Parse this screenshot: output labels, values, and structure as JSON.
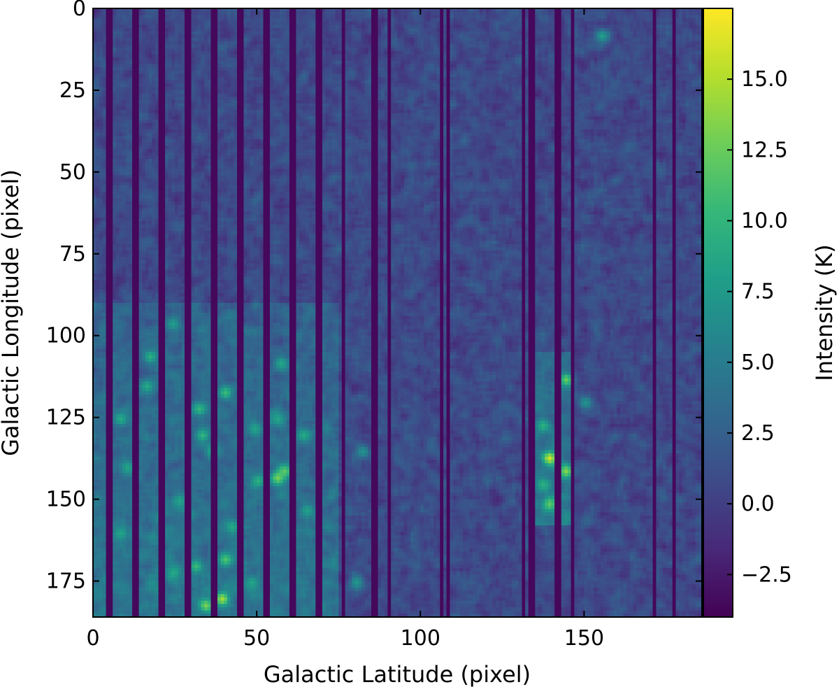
{
  "chart_data": {
    "type": "heatmap",
    "title": "",
    "xlabel": "Galactic Latitude (pixel)",
    "ylabel": "Galactic Longitude (pixel)",
    "colorbar_label": "Intensity (K)",
    "colormap": "viridis",
    "grid": false,
    "image_shape": [
      186,
      186
    ],
    "xlim": [
      0,
      186
    ],
    "ylim": [
      186,
      0
    ],
    "x_ticks": [
      0,
      50,
      100,
      150
    ],
    "x_tick_labels": [
      "0",
      "50",
      "100",
      "150"
    ],
    "y_ticks": [
      0,
      25,
      50,
      75,
      100,
      125,
      150,
      175
    ],
    "y_tick_labels": [
      "0",
      "25",
      "50",
      "75",
      "100",
      "125",
      "150",
      "175"
    ],
    "color_range": [
      -4.0,
      17.5
    ],
    "colorbar_ticks": [
      -2.5,
      0.0,
      2.5,
      5.0,
      7.5,
      10.0,
      12.5,
      15.0
    ],
    "colorbar_tick_labels": [
      "−2.5",
      "0.0",
      "2.5",
      "5.0",
      "7.5",
      "10.0",
      "12.5",
      "15.0"
    ],
    "background_level": 0.5,
    "masked_value": -3.6,
    "masked_columns": [
      {
        "start": 4,
        "end": 6
      },
      {
        "start": 12,
        "end": 14
      },
      {
        "start": 20,
        "end": 22
      },
      {
        "start": 28,
        "end": 30
      },
      {
        "start": 36,
        "end": 38
      },
      {
        "start": 44,
        "end": 46
      },
      {
        "start": 52,
        "end": 54
      },
      {
        "start": 60,
        "end": 62
      },
      {
        "start": 68,
        "end": 70
      },
      {
        "start": 76,
        "end": 76.5
      },
      {
        "start": 85,
        "end": 87
      },
      {
        "start": 90,
        "end": 90.5
      },
      {
        "start": 106,
        "end": 106.5
      },
      {
        "start": 108,
        "end": 108.5
      },
      {
        "start": 131,
        "end": 131.5
      },
      {
        "start": 133,
        "end": 135
      },
      {
        "start": 141,
        "end": 143
      },
      {
        "start": 146,
        "end": 146.5
      },
      {
        "start": 171,
        "end": 171.5
      },
      {
        "start": 177,
        "end": 177.5
      }
    ],
    "emission_regions": [
      {
        "x": [
          0,
          75
        ],
        "y": [
          90,
          186
        ],
        "mean_intensity": 5.5
      },
      {
        "x": [
          134,
          146
        ],
        "y": [
          105,
          158
        ],
        "mean_intensity": 6.0
      }
    ],
    "bright_spots": [
      {
        "x": 139,
        "y": 137,
        "value": 16.0
      },
      {
        "x": 144,
        "y": 141,
        "value": 13.5
      },
      {
        "x": 144,
        "y": 113,
        "value": 12.5
      },
      {
        "x": 139,
        "y": 151,
        "value": 12.0
      },
      {
        "x": 56,
        "y": 143,
        "value": 13.0
      },
      {
        "x": 58,
        "y": 141,
        "value": 12.0
      },
      {
        "x": 39,
        "y": 180,
        "value": 14.5
      },
      {
        "x": 34,
        "y": 182,
        "value": 13.0
      },
      {
        "x": 40,
        "y": 168,
        "value": 11.5
      },
      {
        "x": 31,
        "y": 170,
        "value": 10.5
      },
      {
        "x": 40,
        "y": 117,
        "value": 10.5
      },
      {
        "x": 32,
        "y": 122,
        "value": 10.0
      },
      {
        "x": 33,
        "y": 130,
        "value": 10.0
      },
      {
        "x": 50,
        "y": 144,
        "value": 9.5
      },
      {
        "x": 17,
        "y": 106,
        "value": 9.5
      },
      {
        "x": 16,
        "y": 115,
        "value": 9.0
      },
      {
        "x": 8,
        "y": 125,
        "value": 9.0
      },
      {
        "x": 8,
        "y": 160,
        "value": 8.5
      },
      {
        "x": 64,
        "y": 130,
        "value": 9.0
      },
      {
        "x": 56,
        "y": 125,
        "value": 8.5
      },
      {
        "x": 26,
        "y": 150,
        "value": 8.5
      },
      {
        "x": 42,
        "y": 158,
        "value": 9.0
      },
      {
        "x": 24,
        "y": 96,
        "value": 8.0
      },
      {
        "x": 57,
        "y": 108,
        "value": 8.5
      },
      {
        "x": 10,
        "y": 140,
        "value": 8.5
      },
      {
        "x": 36,
        "y": 135,
        "value": 9.0
      },
      {
        "x": 49,
        "y": 128,
        "value": 8.5
      },
      {
        "x": 65,
        "y": 153,
        "value": 8.0
      },
      {
        "x": 24,
        "y": 172,
        "value": 9.0
      },
      {
        "x": 48,
        "y": 175,
        "value": 8.5
      },
      {
        "x": 155,
        "y": 8,
        "value": 8.0
      },
      {
        "x": 80,
        "y": 175,
        "value": 7.5
      },
      {
        "x": 82,
        "y": 135,
        "value": 7.0
      },
      {
        "x": 150,
        "y": 120,
        "value": 7.0
      },
      {
        "x": 137,
        "y": 127,
        "value": 9.5
      },
      {
        "x": 137,
        "y": 145,
        "value": 9.5
      }
    ]
  }
}
